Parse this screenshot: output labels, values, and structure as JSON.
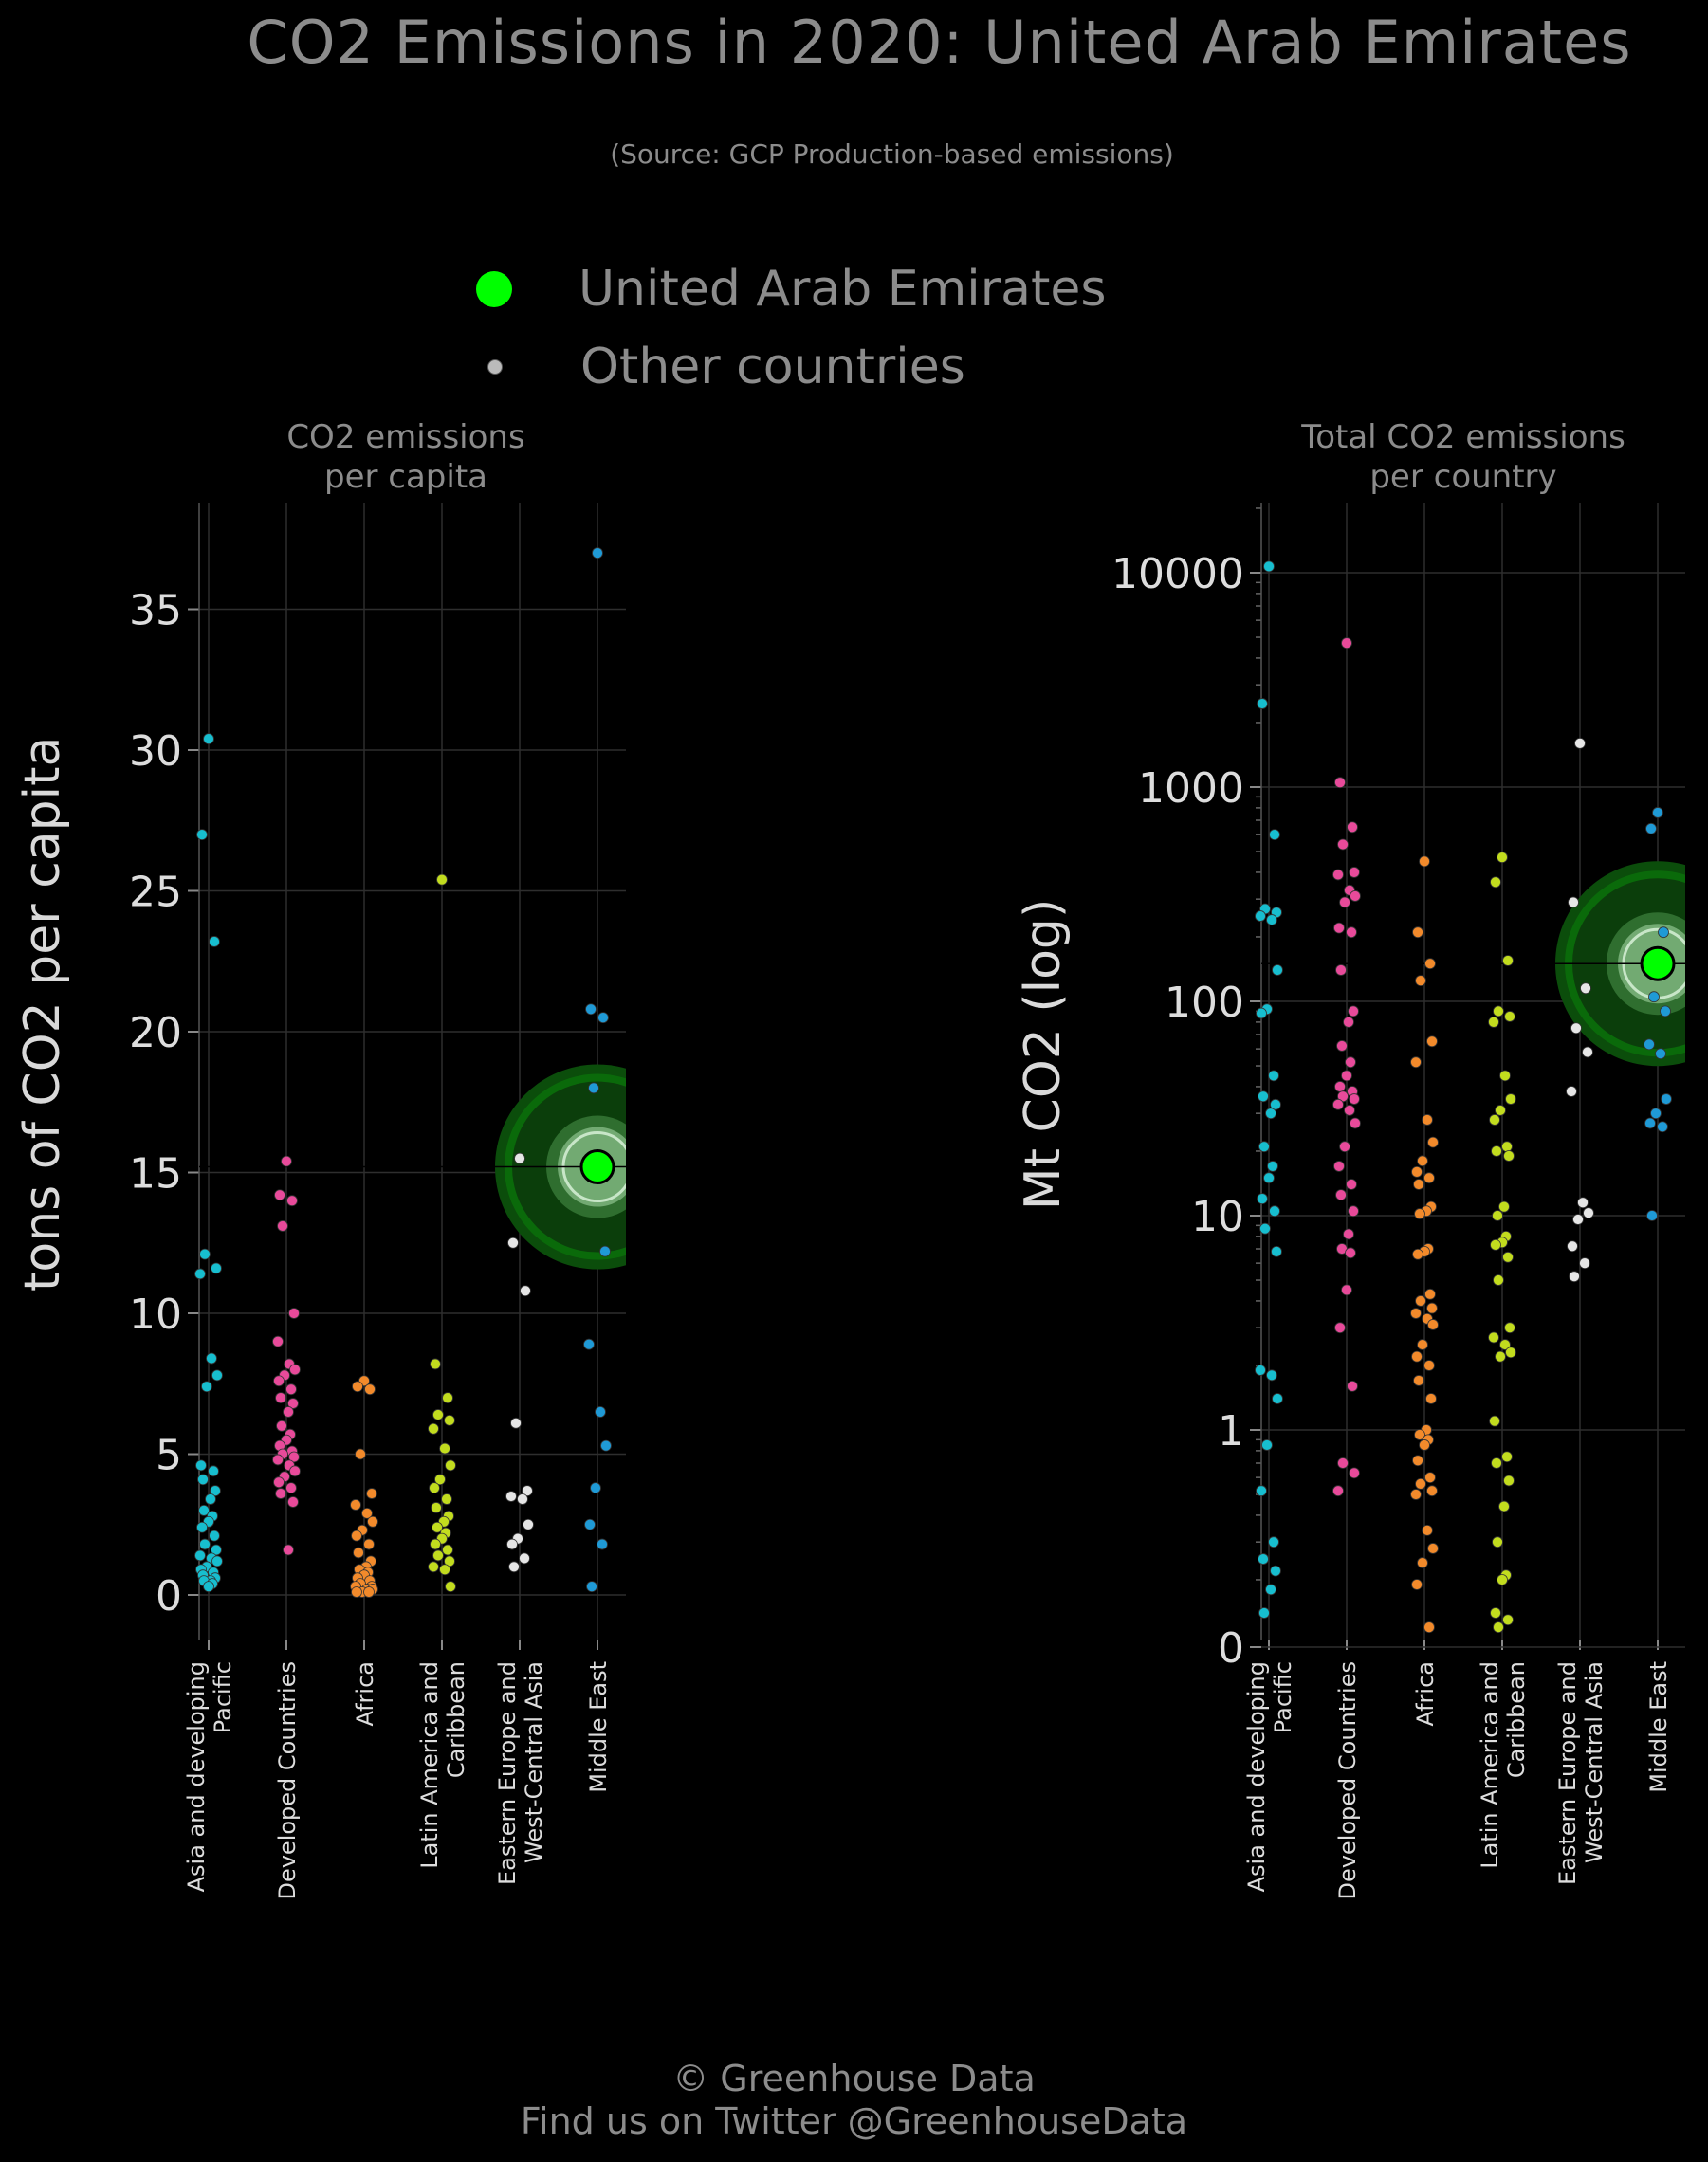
{
  "title": "CO2 Emissions in 2020: United Arab Emirates",
  "subtitle": "(Source: GCP Production-based emissions)",
  "legend": [
    {
      "label": "United Arab Emirates",
      "color": "#00ff00"
    },
    {
      "label": "Other countries",
      "color": "#bbbbbb"
    }
  ],
  "footer": {
    "line1": "© Greenhouse Data",
    "line2": "Find us on Twitter @GreenhouseData"
  },
  "colors": {
    "background": "#000000",
    "highlight": "#00ff00",
    "Asia and developing Pacific": "#17becf",
    "Developed Countries": "#e84a9a",
    "Africa": "#f28a2b",
    "Latin America and Caribbean": "#c2dc1e",
    "Eastern Europe and West-Central Asia": "#e6e6e6",
    "Middle East": "#1f9ad6"
  },
  "chart_data": [
    {
      "type": "scatter",
      "panel_title": "CO2 emissions\nper capita",
      "ylabel": "tons of CO2 per capita",
      "ylim": [
        -1.5,
        39
      ],
      "yticks": [
        0,
        5,
        10,
        15,
        20,
        25,
        30,
        35
      ],
      "scale": "linear",
      "grid": true,
      "categories": [
        "Asia and developing Pacific",
        "Developed Countries",
        "Africa",
        "Latin America and Caribbean",
        "Eastern Europe and West-Central Asia",
        "Middle East"
      ],
      "category_labels": [
        [
          "Asia and developing",
          "Pacific"
        ],
        [
          "Developed Countries"
        ],
        [
          "Africa"
        ],
        [
          "Latin America and",
          "Caribbean"
        ],
        [
          "Eastern Europe and",
          "West-Central Asia"
        ],
        [
          "Middle East"
        ]
      ],
      "highlight": {
        "category": "Middle East",
        "value": 15.2,
        "label": "United Arab Emirates"
      },
      "series": [
        {
          "category": "Asia and developing Pacific",
          "values": [
            30.4,
            27.0,
            23.2,
            12.1,
            11.6,
            11.4,
            8.4,
            7.8,
            7.4,
            4.6,
            4.4,
            4.1,
            3.7,
            3.4,
            3.0,
            2.8,
            2.6,
            2.4,
            2.1,
            1.8,
            1.6,
            1.4,
            1.3,
            1.2,
            1.0,
            0.9,
            0.8,
            0.7,
            0.6,
            0.5,
            0.5,
            0.4,
            0.3
          ]
        },
        {
          "category": "Developed Countries",
          "values": [
            15.4,
            14.2,
            14.0,
            13.1,
            10.0,
            9.0,
            8.2,
            8.0,
            7.8,
            7.6,
            7.3,
            7.0,
            6.8,
            6.5,
            6.0,
            5.7,
            5.5,
            5.3,
            5.1,
            5.0,
            4.9,
            4.8,
            4.6,
            4.4,
            4.2,
            4.0,
            3.8,
            3.6,
            3.3,
            1.6
          ]
        },
        {
          "category": "Africa",
          "values": [
            7.6,
            7.4,
            7.3,
            5.0,
            3.6,
            3.2,
            2.9,
            2.6,
            2.3,
            2.1,
            1.8,
            1.5,
            1.2,
            1.0,
            0.9,
            0.8,
            0.7,
            0.6,
            0.5,
            0.4,
            0.3,
            0.3,
            0.2,
            0.2,
            0.1,
            0.1,
            0.1
          ]
        },
        {
          "category": "Latin America and Caribbean",
          "values": [
            25.4,
            8.2,
            7.0,
            6.4,
            6.2,
            5.9,
            5.2,
            4.6,
            4.1,
            3.8,
            3.4,
            3.1,
            2.8,
            2.6,
            2.4,
            2.2,
            2.0,
            1.8,
            1.6,
            1.4,
            1.2,
            1.0,
            0.9,
            0.3
          ]
        },
        {
          "category": "Eastern Europe and West-Central Asia",
          "values": [
            15.5,
            12.5,
            10.8,
            6.1,
            3.7,
            3.5,
            3.4,
            2.5,
            2.0,
            1.8,
            1.3,
            1.0
          ]
        },
        {
          "category": "Middle East",
          "values": [
            37.0,
            20.8,
            20.5,
            18.0,
            12.2,
            8.9,
            6.5,
            5.3,
            3.8,
            2.5,
            1.8,
            0.3
          ]
        }
      ]
    },
    {
      "type": "scatter",
      "panel_title": "Total CO2 emissions\nper country",
      "ylabel": "Mt CO2 (log)",
      "scale": "log",
      "ylim": [
        0.0,
        25000
      ],
      "yticks": [
        0,
        1,
        10,
        100,
        1000,
        10000
      ],
      "grid": true,
      "categories": [
        "Asia and developing Pacific",
        "Developed Countries",
        "Africa",
        "Latin America and Caribbean",
        "Eastern Europe and West-Central Asia",
        "Middle East"
      ],
      "category_labels": [
        [
          "Asia and developing",
          "Pacific"
        ],
        [
          "Developed Countries"
        ],
        [
          "Africa"
        ],
        [
          "Latin America and",
          "Caribbean"
        ],
        [
          "Eastern Europe and",
          "West-Central Asia"
        ],
        [
          "Middle East"
        ]
      ],
      "highlight": {
        "category": "Middle East",
        "value": 150,
        "label": "United Arab Emirates"
      },
      "series": [
        {
          "category": "Asia and developing Pacific",
          "values": [
            10700,
            2450,
            600,
            270,
            260,
            250,
            240,
            140,
            92,
            88,
            45,
            36,
            33,
            30,
            21,
            17,
            15,
            12,
            10.5,
            8.7,
            6.8,
            1.9,
            1.8,
            1.4,
            0.85,
            0.52,
            0.3,
            0.25,
            0.22,
            0.18,
            0.14
          ]
        },
        {
          "category": "Developed Countries",
          "values": [
            4700,
            1050,
            650,
            540,
            400,
            390,
            330,
            310,
            290,
            220,
            210,
            140,
            90,
            80,
            62,
            52,
            45,
            40,
            38,
            36,
            35,
            33,
            31,
            27,
            21,
            17,
            14,
            12.5,
            10.5,
            8.2,
            7.0,
            6.7,
            4.5,
            3.0,
            1.6,
            0.7,
            0.63,
            0.52
          ]
        },
        {
          "category": "Africa",
          "values": [
            450,
            210,
            150,
            125,
            65,
            52,
            28,
            22,
            18,
            16,
            15,
            14,
            11,
            10.5,
            10.2,
            7.0,
            6.8,
            6.6,
            4.3,
            4.0,
            3.7,
            3.5,
            3.3,
            3.1,
            2.5,
            2.2,
            2.0,
            1.7,
            1.4,
            1.0,
            0.95,
            0.9,
            0.85,
            0.72,
            0.6,
            0.56,
            0.52,
            0.5,
            0.34,
            0.28,
            0.24,
            0.19,
            0.12
          ]
        },
        {
          "category": "Latin America and Caribbean",
          "values": [
            470,
            360,
            155,
            90,
            85,
            80,
            45,
            35,
            31,
            28,
            21,
            20,
            19,
            11,
            10,
            8,
            7.5,
            7.3,
            6.4,
            5.0,
            3.0,
            2.7,
            2.5,
            2.3,
            2.2,
            1.1,
            0.75,
            0.7,
            0.58,
            0.44,
            0.3,
            0.21,
            0.2,
            0.14,
            0.13,
            0.12
          ]
        },
        {
          "category": "Eastern Europe and West-Central Asia",
          "values": [
            1600,
            290,
            115,
            75,
            58,
            38,
            11.5,
            10.3,
            9.6,
            7.2,
            6.0,
            5.2
          ]
        },
        {
          "category": "Middle East",
          "values": [
            760,
            640,
            210,
            105,
            90,
            63,
            57,
            35,
            30,
            27,
            26,
            10
          ]
        }
      ]
    }
  ]
}
